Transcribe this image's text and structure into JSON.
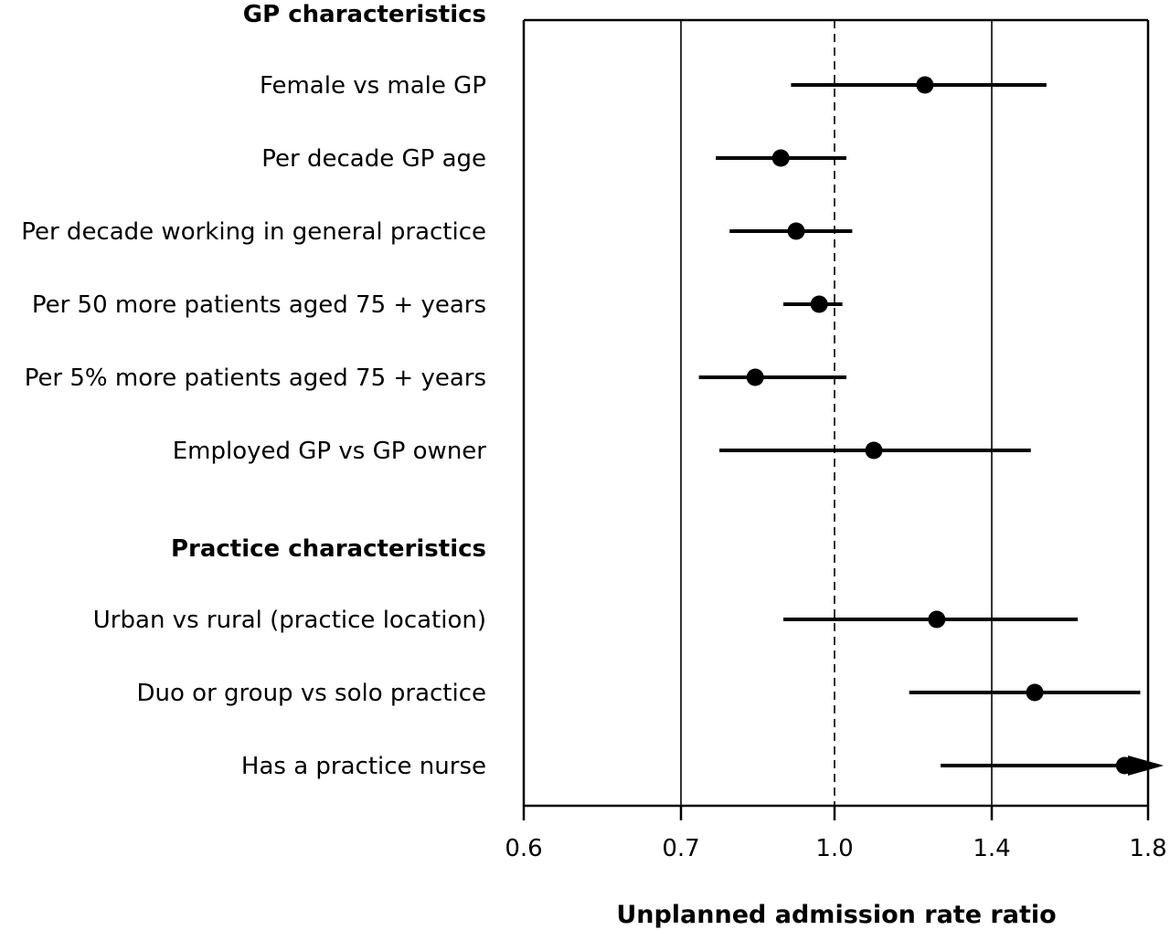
{
  "chart_data": {
    "type": "forest",
    "title": "",
    "xlabel": "Unplanned admission rate ratio",
    "ylabel": "",
    "xscale": "log",
    "xlim": [
      0.6,
      1.8
    ],
    "xticks": [
      0.6,
      0.7,
      1.0,
      1.4,
      1.8
    ],
    "xtick_labels": [
      "0.6",
      "0.7",
      "1.0",
      "1.4",
      "1.8"
    ],
    "reference_line": 1.0,
    "reference_style": "dashed",
    "gridlines": [
      0.7,
      1.4
    ],
    "groups": [
      {
        "label": "GP characteristics",
        "rows": [
          {
            "label": "Female vs male GP",
            "estimate": 1.23,
            "lower": 0.915,
            "upper": 1.54
          },
          {
            "label": "Per decade GP age",
            "estimate": 0.895,
            "lower": 0.768,
            "upper": 1.03
          },
          {
            "label": "Per decade working in general practice",
            "estimate": 0.925,
            "lower": 0.795,
            "upper": 1.045
          },
          {
            "label": "Per 50 more patients aged 75 + years",
            "estimate": 0.97,
            "lower": 0.9,
            "upper": 1.02
          },
          {
            "label": "Per 5% more patients aged 75 + years",
            "estimate": 0.845,
            "lower": 0.735,
            "upper": 1.03
          },
          {
            "label": "Employed GP vs GP owner",
            "estimate": 1.1,
            "lower": 0.775,
            "upper": 1.5
          }
        ]
      },
      {
        "label": "Practice characteristics",
        "rows": [
          {
            "label": "Urban vs rural (practice location)",
            "estimate": 1.26,
            "lower": 0.9,
            "upper": 1.62
          },
          {
            "label": "Duo or group vs solo practice",
            "estimate": 1.51,
            "lower": 1.19,
            "upper": 1.78
          },
          {
            "label": "Has a practice nurse",
            "estimate": 1.74,
            "lower": 1.27,
            "upper": 1.8,
            "truncated_upper": true
          }
        ]
      }
    ]
  }
}
